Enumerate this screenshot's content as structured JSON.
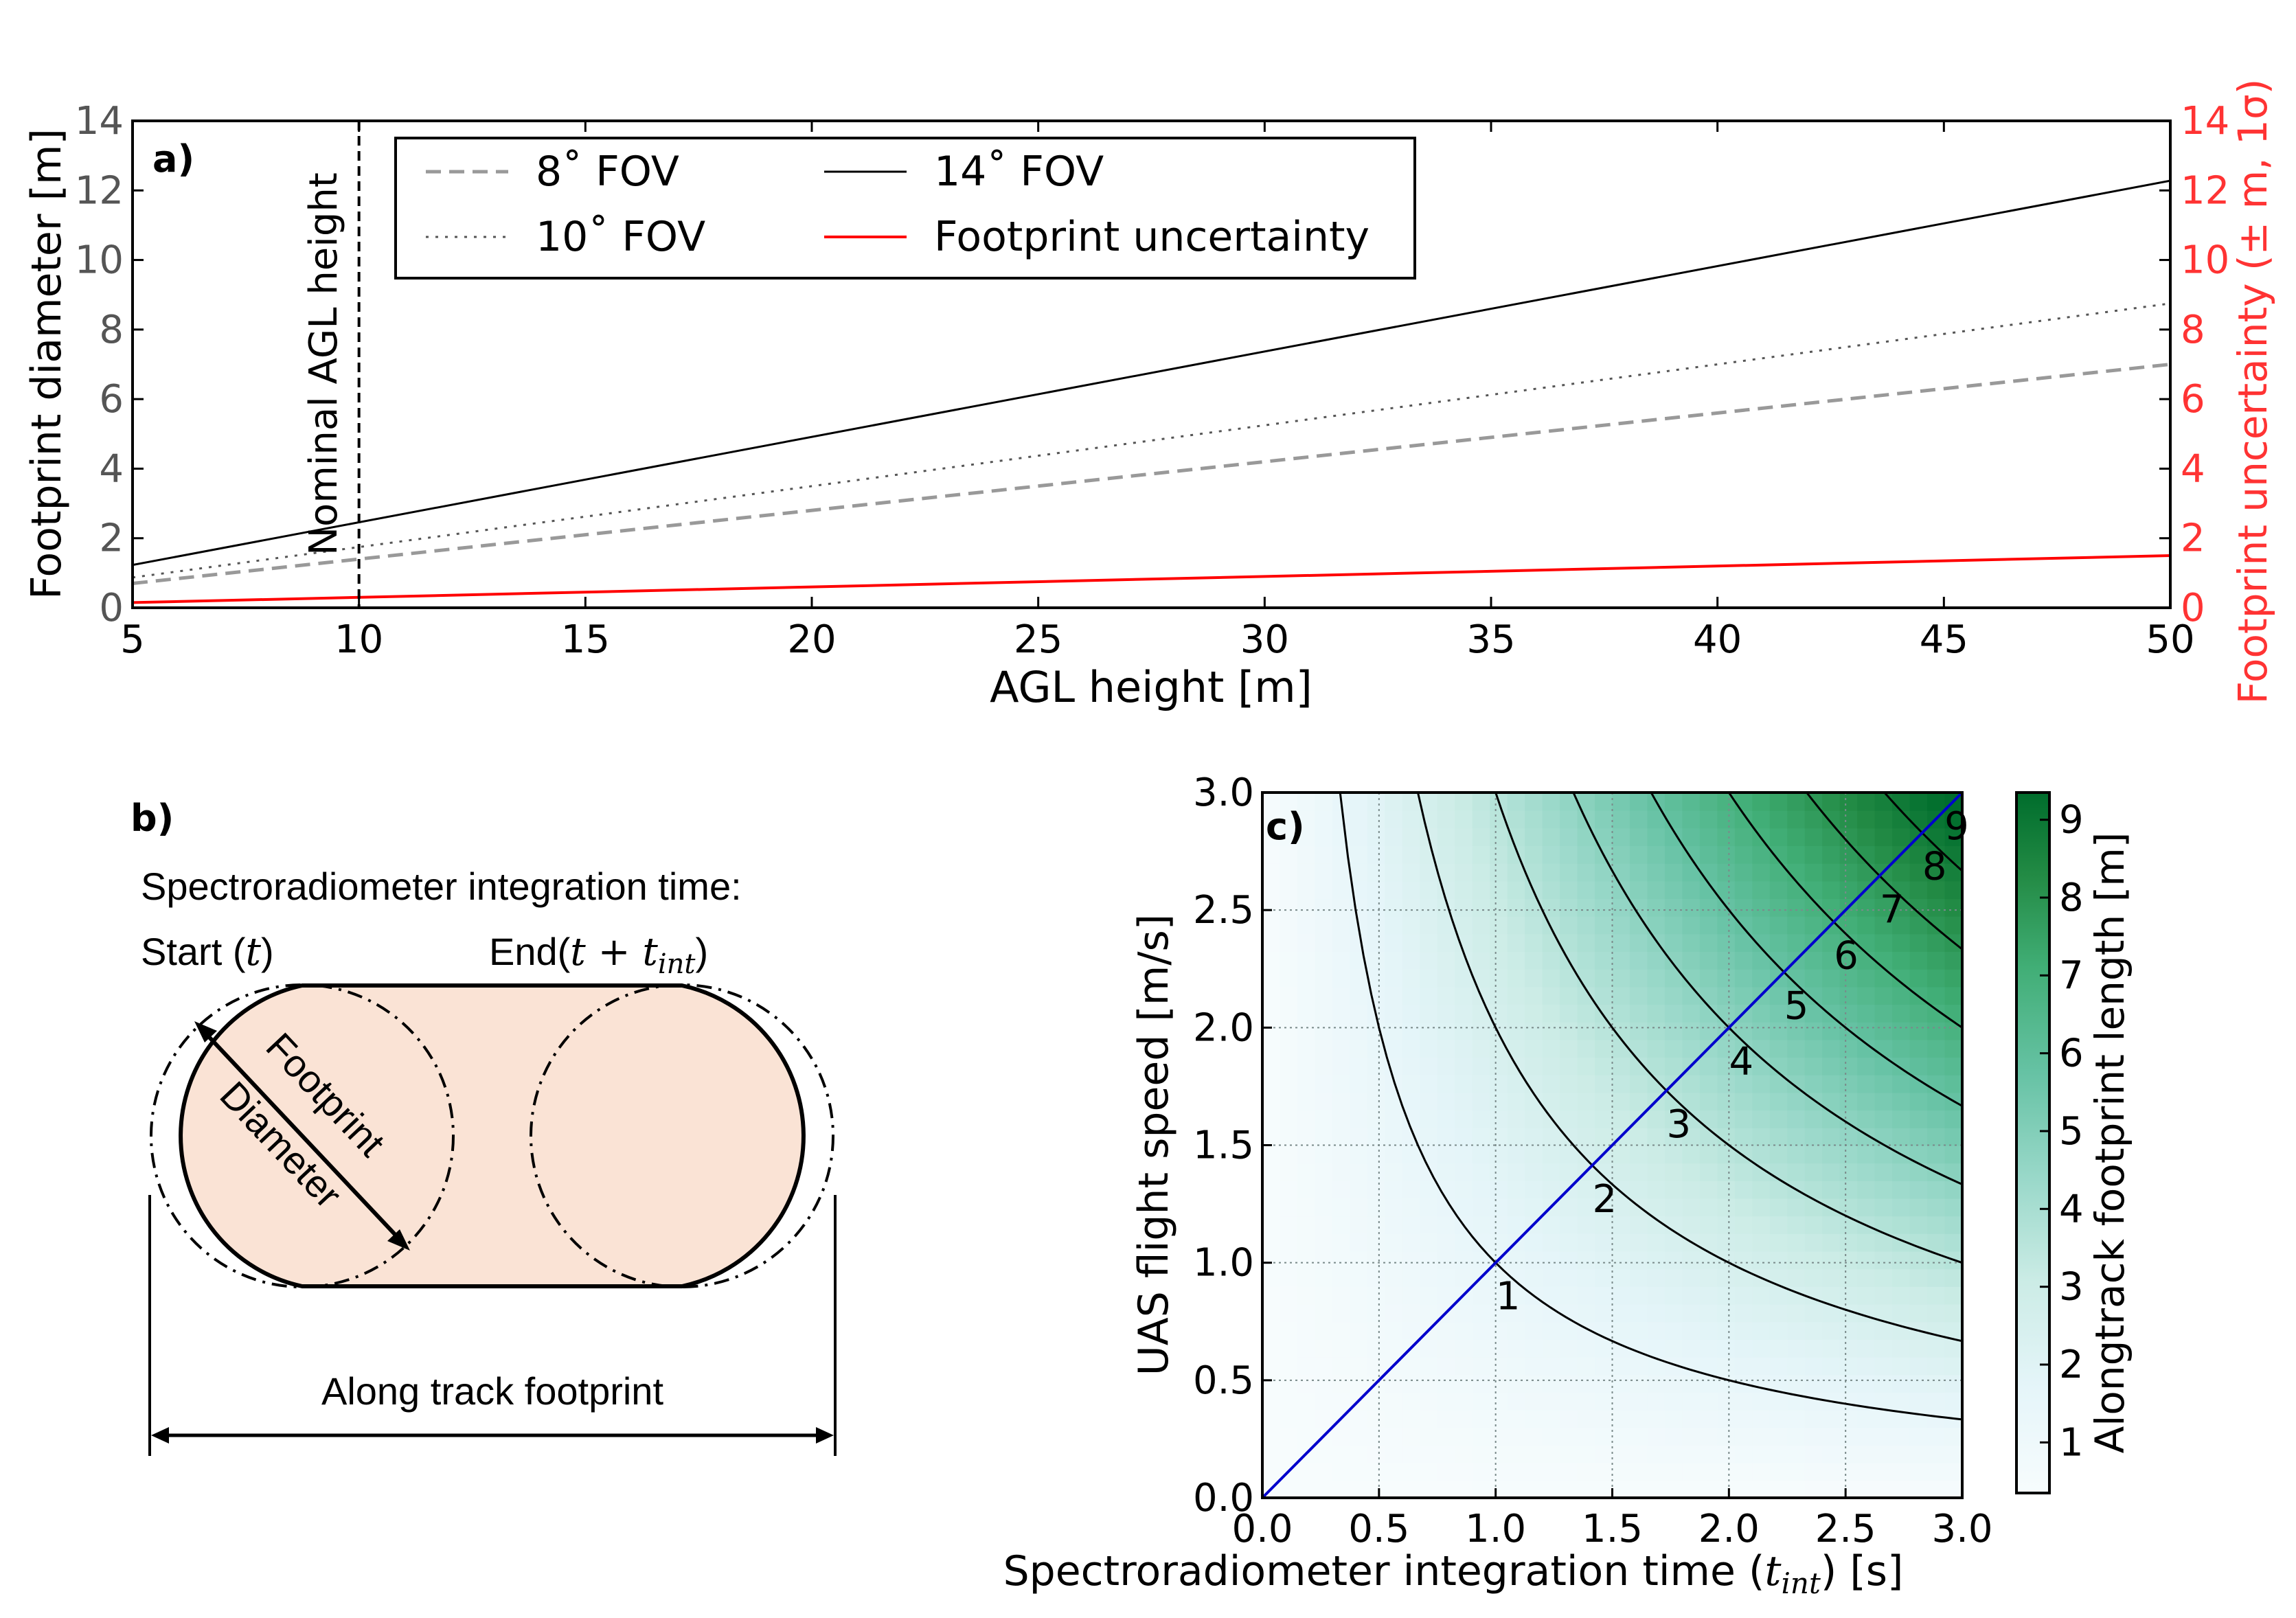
{
  "panel_a": {
    "label": "a)",
    "vline_label": "Nominal AGL height",
    "chart_data": {
      "type": "line",
      "xlabel": "AGL height [m]",
      "ylabel": "Footprint diameter [m]",
      "ylabel_right": "Footprint uncertainty (± m, 1σ)",
      "xlim": [
        5,
        50
      ],
      "ylim": [
        0,
        14
      ],
      "ylim_right": [
        0,
        14
      ],
      "xticks": [
        "5",
        "10",
        "15",
        "20",
        "25",
        "30",
        "35",
        "40",
        "45",
        "50"
      ],
      "yticks": [
        "0",
        "2",
        "4",
        "6",
        "8",
        "10",
        "12",
        "14"
      ],
      "yticks_right": [
        "0",
        "2",
        "4",
        "6",
        "8",
        "10",
        "12",
        "14"
      ],
      "vline_x": 10,
      "legend_position": "top-left",
      "x": [
        5,
        50
      ],
      "series": [
        {
          "name": "8˚ FOV",
          "values": [
            0.7,
            7.0
          ],
          "color": "#999999",
          "style": "dashed"
        },
        {
          "name": "10˚ FOV",
          "values": [
            0.87,
            8.75
          ],
          "color": "#555555",
          "style": "dotted"
        },
        {
          "name": "14˚ FOV",
          "values": [
            1.23,
            12.28
          ],
          "color": "#000000",
          "style": "solid"
        },
        {
          "name": "Footprint uncertainty",
          "values": [
            0.15,
            1.5
          ],
          "color": "#ff0000",
          "style": "solid",
          "axis": "right"
        }
      ],
      "right_axis_color": "#ff3333"
    }
  },
  "panel_b": {
    "label": "b)",
    "title": "Spectroradiometer integration time:",
    "start_label": "Start (",
    "start_var": "t",
    "start_close": ")",
    "end_label": "End(",
    "end_var": "t + t",
    "end_sub": "int",
    "end_close": ")",
    "diameter_line1": "Footprint",
    "diameter_line2": "Diameter",
    "bottom_label": "Along track footprint",
    "fill_color": "#fae3d5"
  },
  "panel_c": {
    "label": "c)",
    "chart_data": {
      "type": "heatmap",
      "xlabel": "Spectroradiometer integration time (",
      "xlabel_var": "t",
      "xlabel_sub": "int",
      "xlabel_end": ") [s]",
      "ylabel": "UAS flight speed [m/s]",
      "colorbar_label": "Alongtrack footprint length [m]",
      "xlim": [
        0,
        3.0
      ],
      "ylim": [
        0,
        3.0
      ],
      "xticks": [
        "0.0",
        "0.5",
        "1.0",
        "1.5",
        "2.0",
        "2.5",
        "3.0"
      ],
      "yticks": [
        "0.0",
        "0.5",
        "1.0",
        "1.5",
        "2.0",
        "2.5",
        "3.0"
      ],
      "colorbar_ticks": [
        "1",
        "2",
        "3",
        "4",
        "5",
        "6",
        "7",
        "8",
        "9"
      ],
      "colorbar_range": [
        0.35,
        9.35
      ],
      "contour_levels": [
        1,
        2,
        3,
        4,
        5,
        6,
        7,
        8,
        9
      ],
      "contour_labels": [
        "1",
        "2",
        "3",
        "4",
        "5",
        "6",
        "7",
        "8",
        "9"
      ],
      "diagonal_color": "#0000cc",
      "grid": true,
      "colormap": [
        "#f7fcfd",
        "#e5f5f9",
        "#ccece6",
        "#99d8c9",
        "#66c2a4",
        "#41ae76",
        "#238b45",
        "#006d2c"
      ]
    }
  }
}
